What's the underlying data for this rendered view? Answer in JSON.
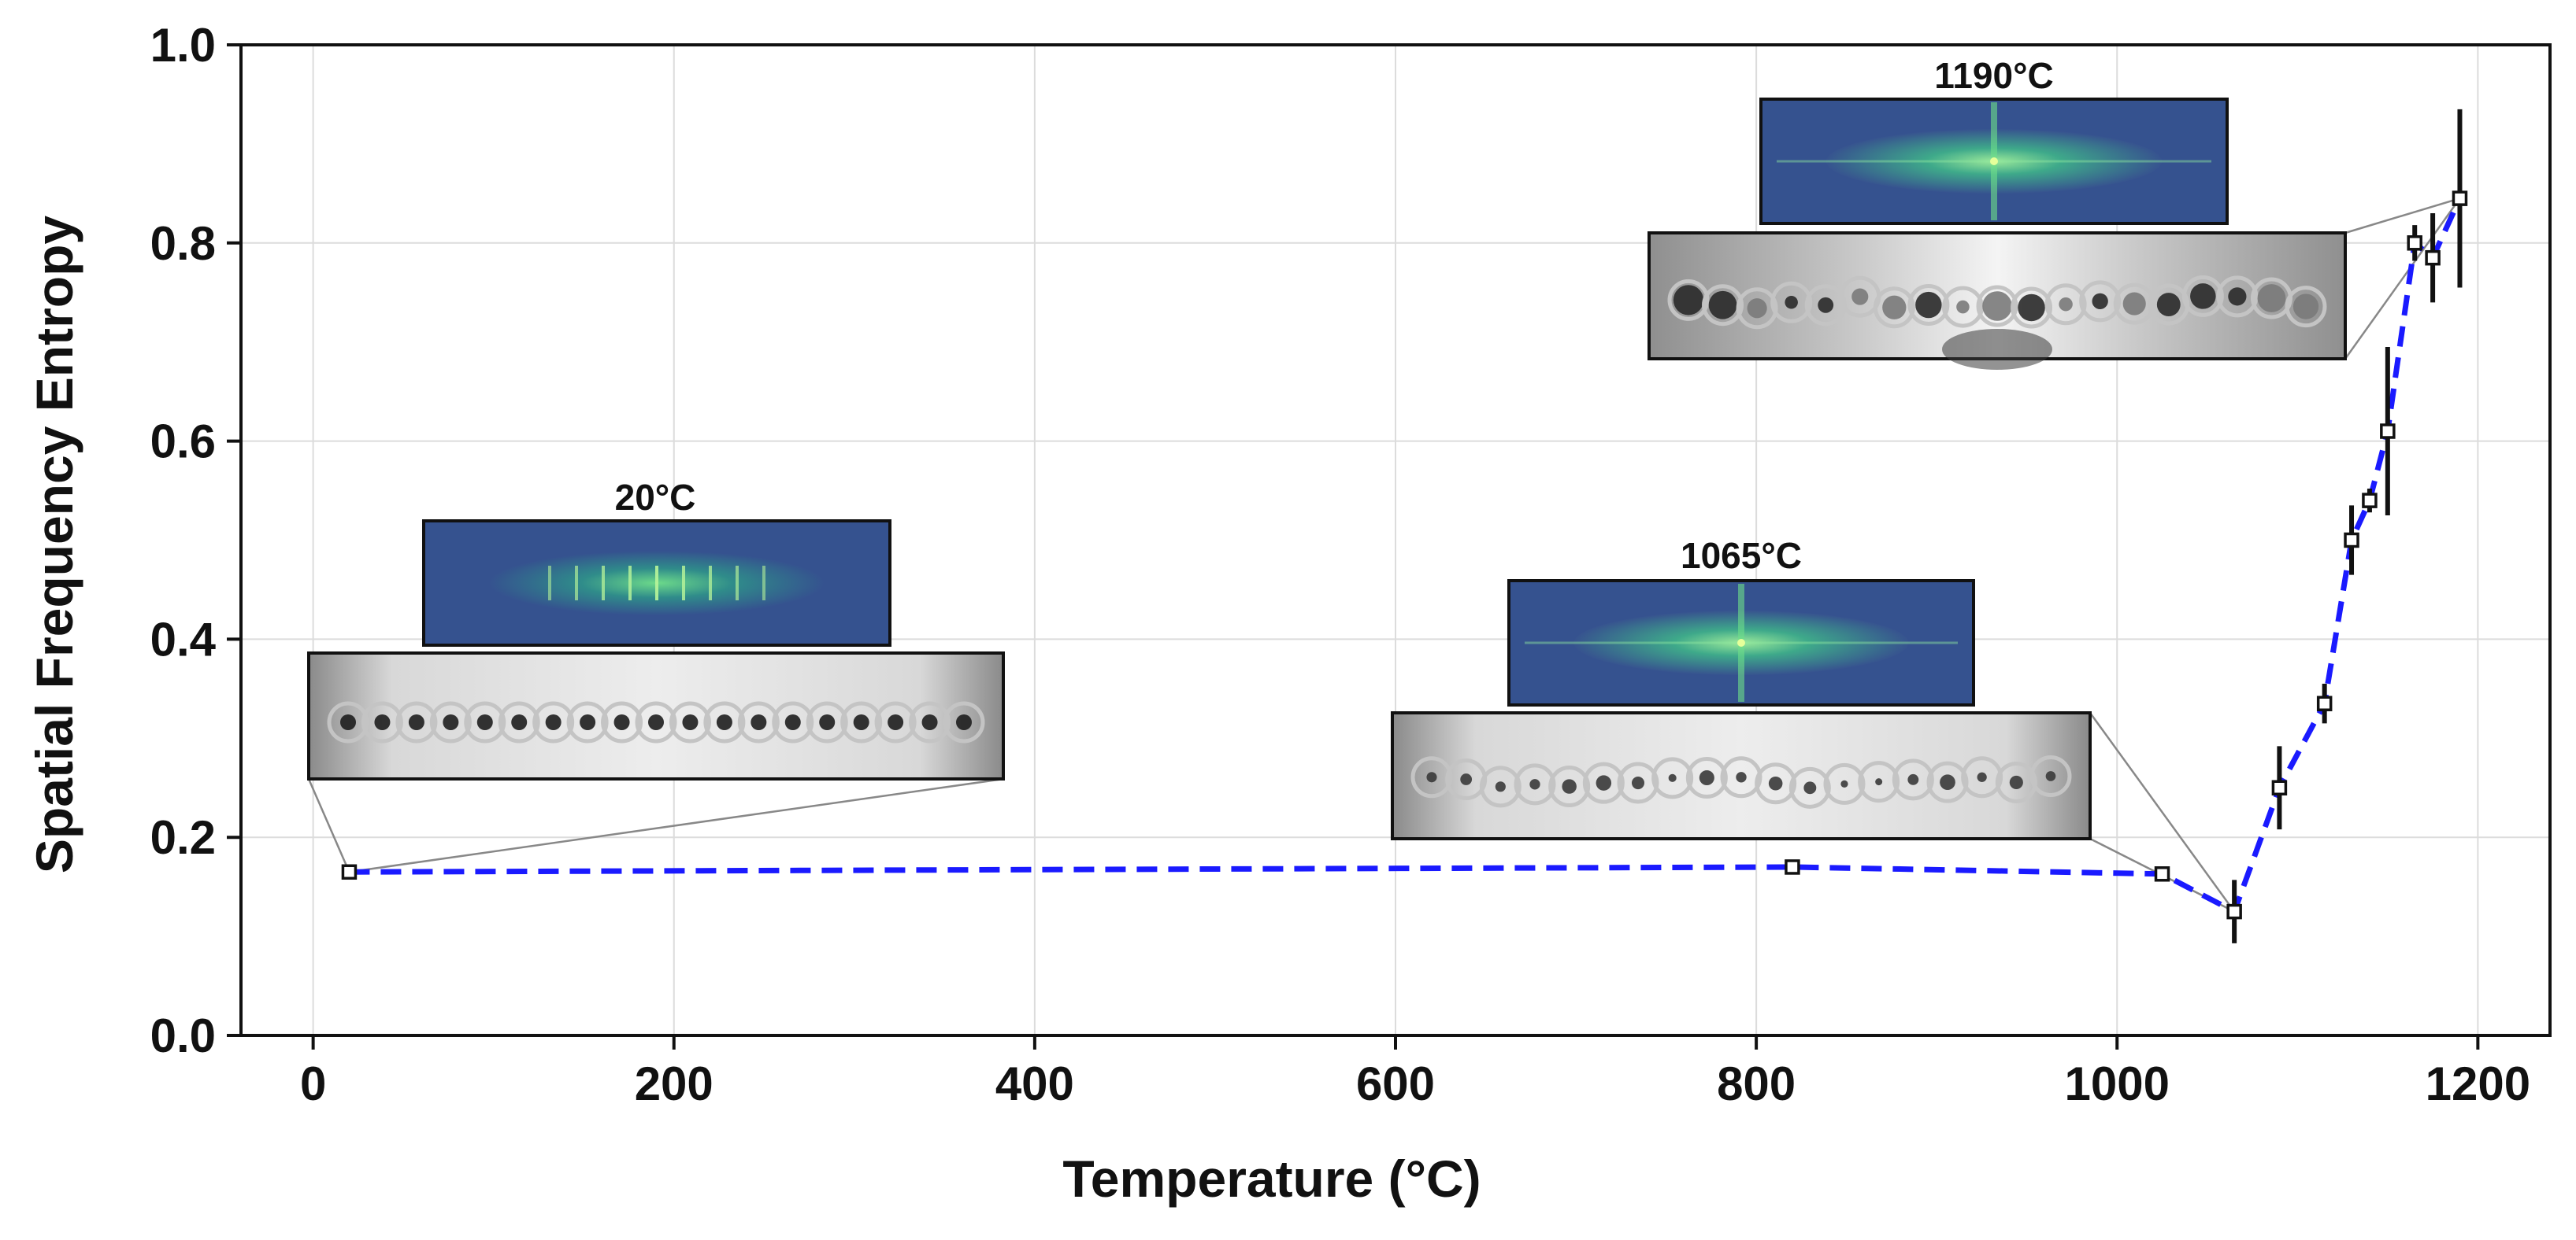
{
  "chart_data": {
    "type": "line",
    "title": "",
    "xlabel": "Temperature (°C)",
    "ylabel": "Spatial Frequency Entropy",
    "xlim": [
      -40,
      1240
    ],
    "ylim": [
      0,
      1.0
    ],
    "x_ticks": [
      0,
      200,
      400,
      600,
      800,
      1000,
      1200
    ],
    "x_tick_labels": [
      "0",
      "200",
      "400",
      "600",
      "800",
      "1000",
      "1200"
    ],
    "y_ticks": [
      0.0,
      0.2,
      0.4,
      0.6,
      0.8,
      1.0
    ],
    "y_tick_labels": [
      "0.0",
      "0.2",
      "0.4",
      "0.6",
      "0.8",
      "1.0"
    ],
    "grid": true,
    "series": [
      {
        "name": "entropy",
        "color": "#1a1aff",
        "line_style": "dashed",
        "marker": "open-square",
        "x": [
          20,
          820,
          1025,
          1065,
          1090,
          1115,
          1130,
          1140,
          1150,
          1165,
          1175,
          1190
        ],
        "y": [
          0.165,
          0.17,
          0.163,
          0.125,
          0.25,
          0.335,
          0.5,
          0.54,
          0.61,
          0.8,
          0.785,
          0.845
        ],
        "yerr": [
          0.0,
          0.0,
          0.0,
          0.032,
          0.042,
          0.02,
          0.035,
          0.012,
          0.085,
          0.018,
          0.045,
          0.09
        ]
      }
    ],
    "insets": [
      {
        "label": "20°C",
        "anchor_x": 20,
        "anchor_y": 0.165,
        "stripe_pattern": "ordered"
      },
      {
        "label": "1065°C",
        "anchor_x": 1065,
        "anchor_y": 0.125,
        "stripe_pattern": "partial"
      },
      {
        "label": "1190°C",
        "anchor_x": 1190,
        "anchor_y": 0.845,
        "stripe_pattern": "disordered"
      }
    ]
  }
}
